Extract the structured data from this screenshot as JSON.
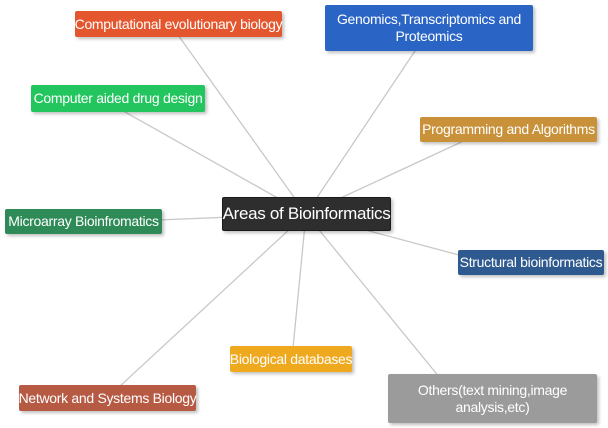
{
  "diagram": {
    "center": {
      "label": "Areas of Bioinformatics",
      "color": "#2e2e2e"
    },
    "nodes": {
      "computational_evolutionary_biology": {
        "label": "Computational evolutionary biology",
        "color": "#e4572e"
      },
      "genomics": {
        "label": "Genomics,Transcriptomics and Proteomics",
        "color": "#2a64c4"
      },
      "computer_aided_drug_design": {
        "label": "Computer aided drug design",
        "color": "#22c55e"
      },
      "programming_and_algorithms": {
        "label": "Programming and Algorithms",
        "color": "#c8913a"
      },
      "microarray_bioinformatics": {
        "label": "Microarray Bioinfromatics",
        "color": "#2e8b57"
      },
      "structural_bioinformatics": {
        "label": "Structural bioinformatics",
        "color": "#2f5a8f"
      },
      "biological_databases": {
        "label": "Biological databases",
        "color": "#efa91f"
      },
      "network_and_systems_biology": {
        "label": "Network and Systems Biology",
        "color": "#b75a44"
      },
      "others": {
        "label": "Others(text mining,image analysis,etc)",
        "color": "#9b9b9b"
      }
    },
    "connector_color": "#c8c8c8"
  }
}
